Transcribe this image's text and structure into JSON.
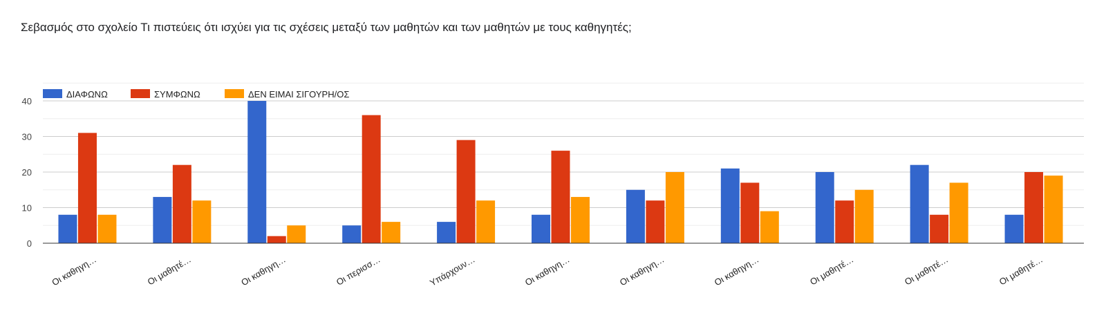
{
  "title": "Σεβασμός στο σχολείο Τι πιστεύεις ότι ισχύει για τις σχέσεις μεταξύ των μαθητών και των μαθητών με τους καθηγητές;",
  "chart_data": {
    "type": "bar",
    "categories": [
      "Οι καθηγη…",
      "Οι μαθητέ…",
      "Οι καθηγη…",
      "Οι περισσ…",
      "Υπάρχουν…",
      "Οι καθηγη…",
      "Οι καθηγη…",
      "Οι καθηγη…",
      "Οι μαθητέ…",
      "Οι μαθητέ…",
      "Οι μαθητέ…"
    ],
    "series": [
      {
        "name": "ΔΙΑΦΩΝΩ",
        "color": "#3366cc",
        "values": [
          8,
          13,
          40,
          5,
          6,
          8,
          15,
          21,
          20,
          22,
          8
        ]
      },
      {
        "name": "ΣΥΜΦΩΝΩ",
        "color": "#dc3912",
        "values": [
          31,
          22,
          2,
          36,
          29,
          26,
          12,
          17,
          12,
          8,
          20
        ]
      },
      {
        "name": "ΔΕΝ ΕΙΜΑΙ ΣΙΓΟΥΡΗ/ΟΣ",
        "color": "#ff9900",
        "values": [
          8,
          12,
          5,
          6,
          12,
          13,
          20,
          9,
          15,
          17,
          19
        ]
      }
    ],
    "yticks": [
      0,
      10,
      20,
      30,
      40
    ],
    "ylim": [
      0,
      40
    ],
    "grid": true,
    "legend_position": "top-left"
  }
}
